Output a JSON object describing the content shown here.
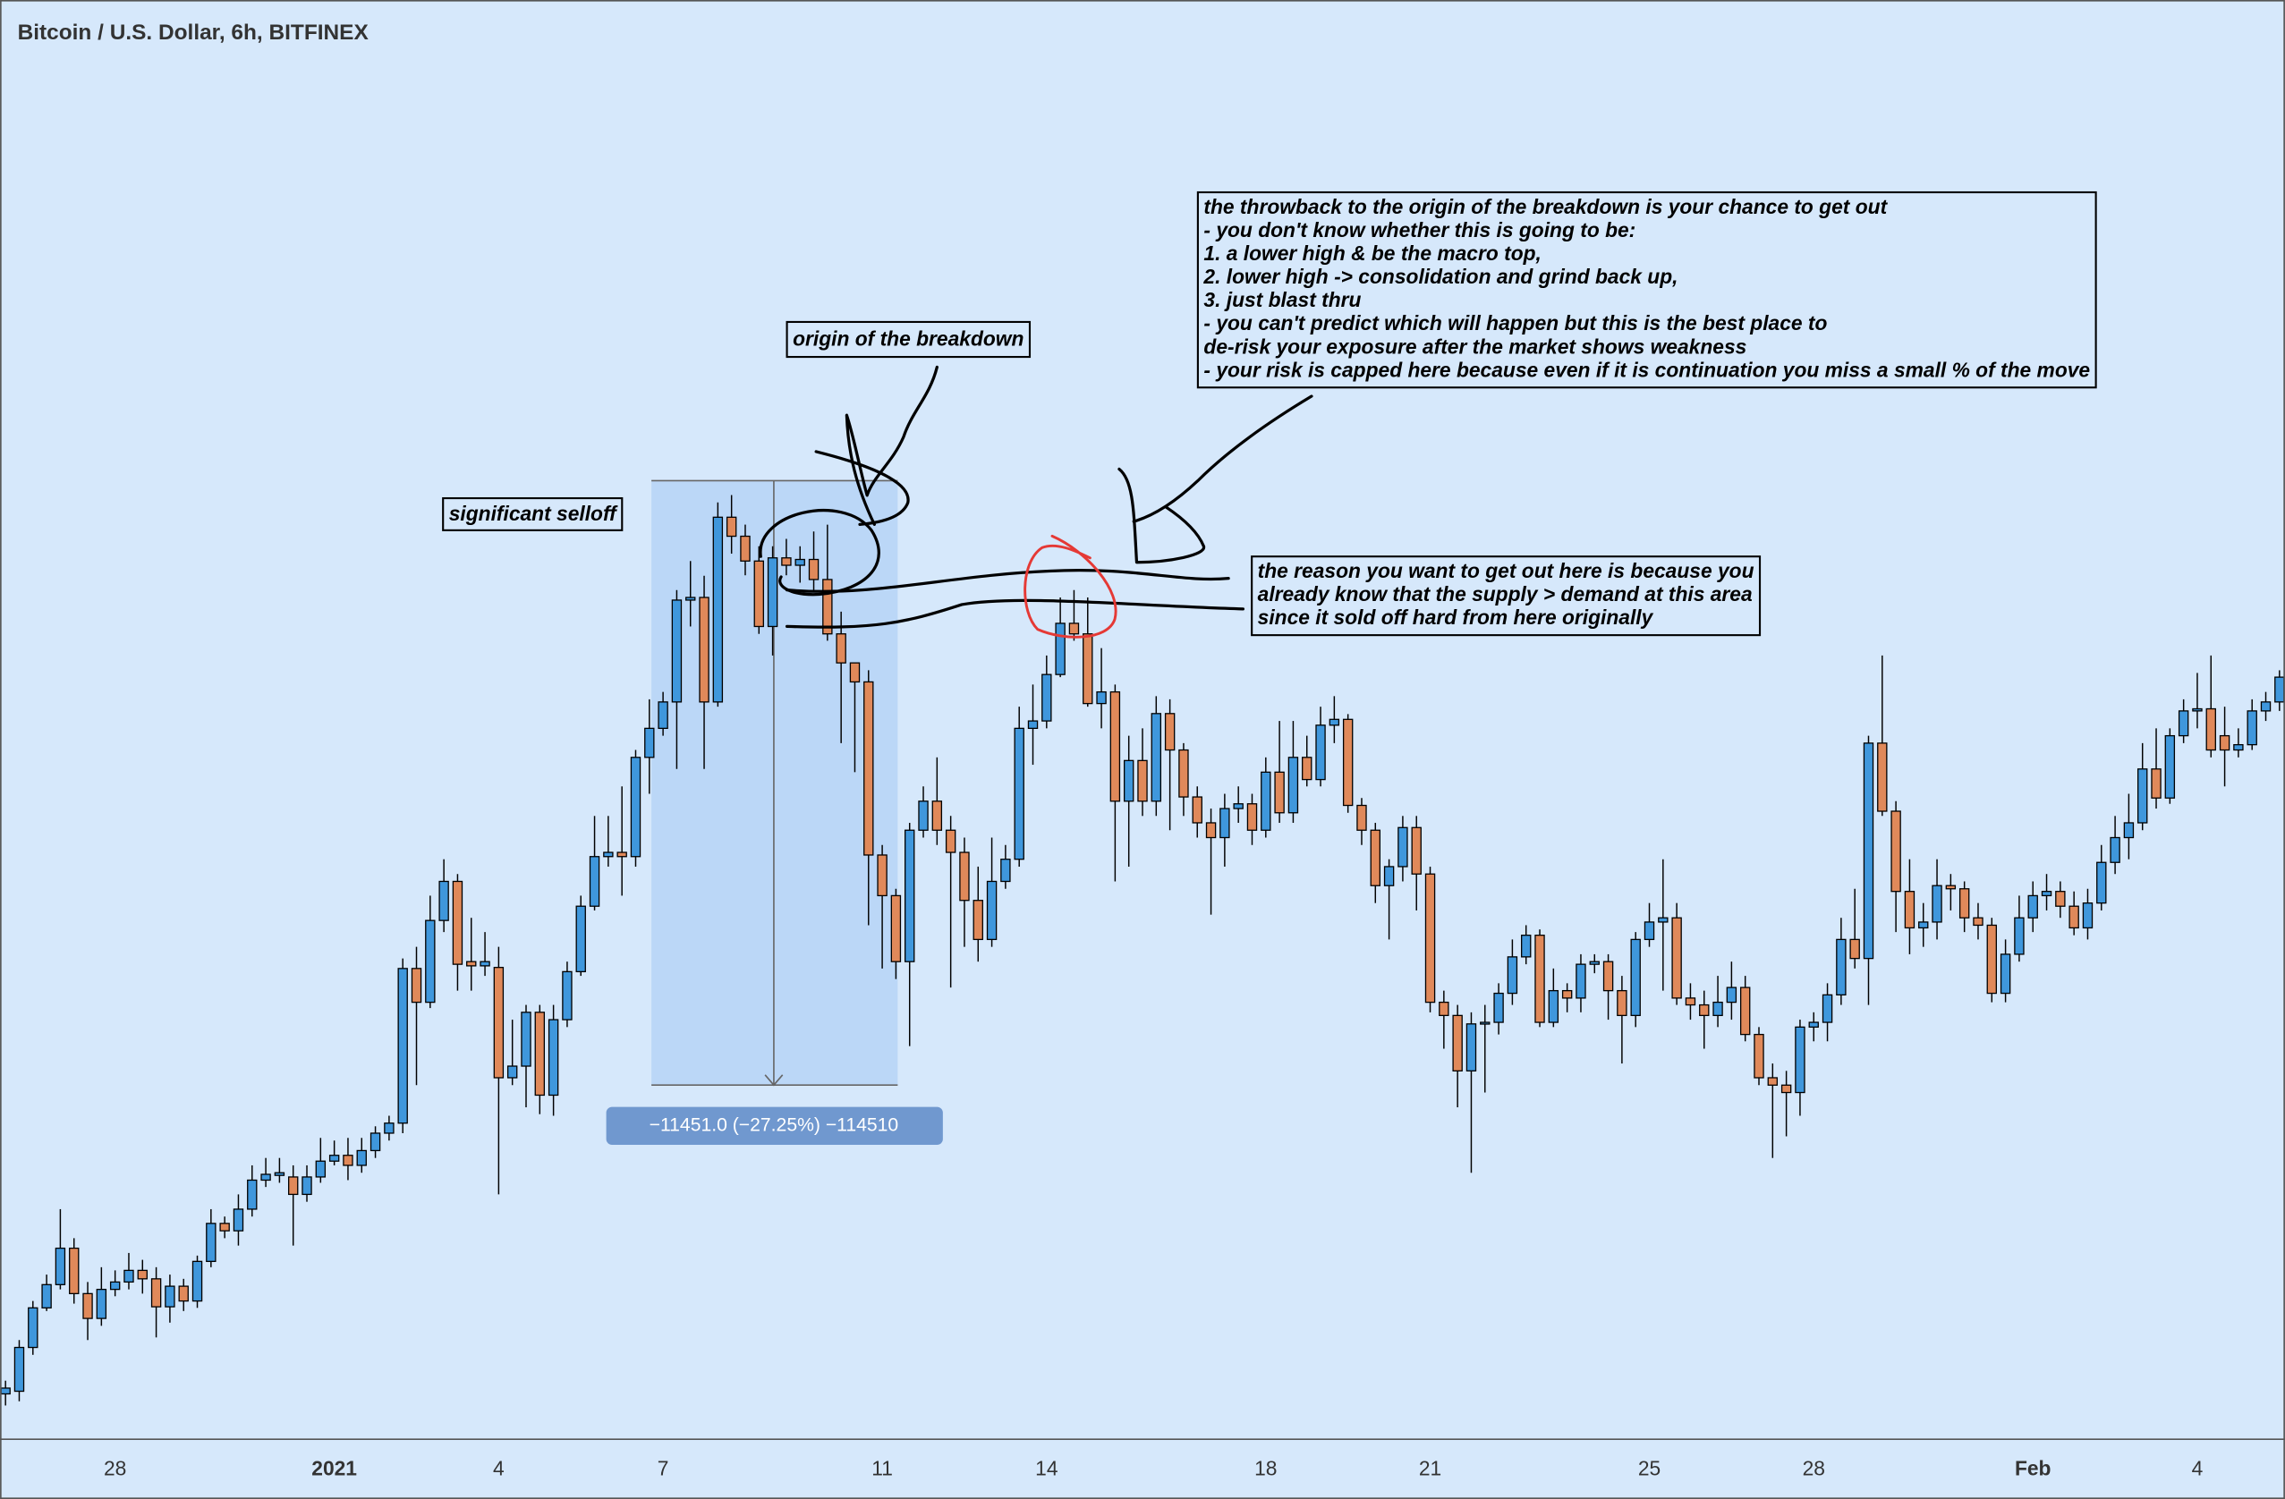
{
  "chart_data": {
    "type": "candlestick",
    "title": "Bitcoin / U.S. Dollar, 6h, BITFINEX",
    "up_color": "#3f97dc",
    "down_color": "#e0895a",
    "background": "#d6e8fb",
    "ylim": [
      23860,
      51130
    ],
    "xlim": [
      -0.4,
      166.4
    ],
    "xticks": [
      {
        "value": 8,
        "label": "28"
      },
      {
        "value": 24,
        "label": "2021"
      },
      {
        "value": 36,
        "label": "4"
      },
      {
        "value": 48,
        "label": "7"
      },
      {
        "value": 64,
        "label": "11"
      },
      {
        "value": 76,
        "label": "14"
      },
      {
        "value": 92,
        "label": "18"
      },
      {
        "value": 104,
        "label": "21"
      },
      {
        "value": 120,
        "label": "25"
      },
      {
        "value": 132,
        "label": "28"
      },
      {
        "value": 148,
        "label": "Feb"
      },
      {
        "value": 160,
        "label": "4"
      }
    ],
    "candles": [
      [
        24720,
        24970,
        24500,
        24830
      ],
      [
        24770,
        25740,
        24580,
        25600
      ],
      [
        25600,
        26480,
        25460,
        26350
      ],
      [
        26350,
        26980,
        26290,
        26790
      ],
      [
        26790,
        28220,
        26700,
        27480
      ],
      [
        27480,
        27670,
        26430,
        26620
      ],
      [
        26620,
        26840,
        25740,
        26150
      ],
      [
        26150,
        27120,
        26010,
        26700
      ],
      [
        26700,
        27060,
        26570,
        26840
      ],
      [
        26840,
        27390,
        26700,
        27060
      ],
      [
        27060,
        27260,
        26620,
        26900
      ],
      [
        26900,
        27120,
        25790,
        26370
      ],
      [
        26370,
        26980,
        26070,
        26760
      ],
      [
        26760,
        26900,
        26290,
        26480
      ],
      [
        26480,
        27340,
        26350,
        27230
      ],
      [
        27230,
        28220,
        27120,
        27950
      ],
      [
        27950,
        28080,
        27670,
        27810
      ],
      [
        27810,
        28500,
        27530,
        28220
      ],
      [
        28220,
        29050,
        28080,
        28770
      ],
      [
        28770,
        29190,
        28640,
        28880
      ],
      [
        28860,
        29190,
        28720,
        28910
      ],
      [
        28830,
        29050,
        27530,
        28500
      ],
      [
        28500,
        29050,
        28360,
        28830
      ],
      [
        28830,
        29570,
        28720,
        29130
      ],
      [
        29130,
        29520,
        29050,
        29240
      ],
      [
        29240,
        29570,
        28770,
        29050
      ],
      [
        29050,
        29570,
        28910,
        29330
      ],
      [
        29330,
        29790,
        29190,
        29660
      ],
      [
        29660,
        29990,
        29520,
        29850
      ],
      [
        29850,
        32970,
        29660,
        32780
      ],
      [
        32780,
        33190,
        30570,
        32140
      ],
      [
        32140,
        34160,
        32030,
        33690
      ],
      [
        33690,
        34850,
        33470,
        34430
      ],
      [
        34430,
        34570,
        32360,
        32860
      ],
      [
        32910,
        33740,
        32360,
        32830
      ],
      [
        32830,
        33470,
        32640,
        32910
      ],
      [
        32800,
        33190,
        28500,
        30710
      ],
      [
        30710,
        31810,
        30570,
        30930
      ],
      [
        30930,
        32090,
        30150,
        31950
      ],
      [
        31950,
        32090,
        30020,
        30380
      ],
      [
        30380,
        32090,
        29990,
        31810
      ],
      [
        31810,
        32910,
        31670,
        32720
      ],
      [
        32720,
        34160,
        32640,
        33960
      ],
      [
        33960,
        35670,
        33880,
        34900
      ],
      [
        34900,
        35670,
        34710,
        34980
      ],
      [
        34980,
        36230,
        34160,
        34900
      ],
      [
        34900,
        36920,
        34710,
        36780
      ],
      [
        36780,
        37880,
        36090,
        37330
      ],
      [
        37330,
        38020,
        37190,
        37830
      ],
      [
        37830,
        39950,
        36560,
        39760
      ],
      [
        39760,
        40500,
        39260,
        39810
      ],
      [
        39810,
        40220,
        36560,
        37830
      ],
      [
        37830,
        41610,
        37740,
        41330
      ],
      [
        41330,
        41750,
        40640,
        40970
      ],
      [
        40970,
        41190,
        40230,
        40500
      ],
      [
        40500,
        40780,
        39120,
        39260
      ],
      [
        39260,
        40780,
        38710,
        40560
      ],
      [
        40560,
        40920,
        40230,
        40420
      ],
      [
        40420,
        40780,
        40090,
        40530
      ],
      [
        40530,
        41060,
        39950,
        40150
      ],
      [
        40150,
        41190,
        38990,
        39120
      ],
      [
        39120,
        39540,
        37050,
        38570
      ],
      [
        38570,
        38570,
        36500,
        38210
      ],
      [
        38210,
        38430,
        33600,
        34930
      ],
      [
        34930,
        35120,
        32780,
        34160
      ],
      [
        34160,
        34290,
        32580,
        32910
      ],
      [
        32910,
        35540,
        31310,
        35400
      ],
      [
        35400,
        36230,
        35260,
        35950
      ],
      [
        35950,
        36780,
        35120,
        35400
      ],
      [
        35400,
        35670,
        32420,
        34980
      ],
      [
        34980,
        35260,
        33190,
        34070
      ],
      [
        34070,
        34710,
        32910,
        33330
      ],
      [
        33330,
        35260,
        33190,
        34430
      ],
      [
        34430,
        35120,
        34290,
        34850
      ],
      [
        34850,
        37740,
        34710,
        37330
      ],
      [
        37330,
        38160,
        36640,
        37470
      ],
      [
        37470,
        38710,
        37330,
        38350
      ],
      [
        38350,
        39810,
        38300,
        39320
      ],
      [
        39320,
        39950,
        38990,
        39120
      ],
      [
        39120,
        39810,
        37740,
        37800
      ],
      [
        37800,
        38850,
        37330,
        38020
      ],
      [
        38020,
        38160,
        34430,
        35950
      ],
      [
        35950,
        37190,
        34710,
        36720
      ],
      [
        36720,
        37330,
        35670,
        35950
      ],
      [
        35950,
        37940,
        35670,
        37610
      ],
      [
        37610,
        37880,
        35400,
        36920
      ],
      [
        36920,
        37050,
        35670,
        36030
      ],
      [
        36030,
        36230,
        35260,
        35540
      ],
      [
        35540,
        35810,
        33800,
        35260
      ],
      [
        35260,
        36090,
        34710,
        35810
      ],
      [
        35810,
        36230,
        35540,
        35900
      ],
      [
        35900,
        36090,
        35120,
        35400
      ],
      [
        35400,
        36780,
        35260,
        36500
      ],
      [
        36500,
        37470,
        35540,
        35730
      ],
      [
        35730,
        37470,
        35540,
        36780
      ],
      [
        36780,
        37190,
        36230,
        36360
      ],
      [
        36360,
        37740,
        36230,
        37390
      ],
      [
        37390,
        37940,
        37050,
        37500
      ],
      [
        37500,
        37600,
        35730,
        35870
      ],
      [
        35870,
        36010,
        35120,
        35400
      ],
      [
        35400,
        35540,
        34020,
        34350
      ],
      [
        34350,
        34850,
        33330,
        34710
      ],
      [
        34710,
        35670,
        34430,
        35450
      ],
      [
        35450,
        35670,
        33880,
        34570
      ],
      [
        34570,
        34710,
        31950,
        32140
      ],
      [
        32140,
        32360,
        31260,
        31890
      ],
      [
        31890,
        32090,
        30150,
        30840
      ],
      [
        30840,
        31950,
        28910,
        31730
      ],
      [
        31730,
        32090,
        30430,
        31760
      ],
      [
        31760,
        32500,
        31530,
        32310
      ],
      [
        32310,
        33330,
        32090,
        33000
      ],
      [
        33000,
        33600,
        32860,
        33410
      ],
      [
        33410,
        33520,
        31670,
        31760
      ],
      [
        31760,
        32780,
        31670,
        32360
      ],
      [
        32360,
        32500,
        31950,
        32220
      ],
      [
        32220,
        33050,
        31950,
        32860
      ],
      [
        32860,
        33050,
        32690,
        32910
      ],
      [
        32910,
        33050,
        31810,
        32360
      ],
      [
        32360,
        32640,
        30980,
        31890
      ],
      [
        31890,
        33470,
        31670,
        33330
      ],
      [
        33330,
        34020,
        33190,
        33660
      ],
      [
        33660,
        34850,
        32360,
        33740
      ],
      [
        33740,
        34020,
        32090,
        32220
      ],
      [
        32220,
        32500,
        31810,
        32090
      ],
      [
        32090,
        32360,
        31260,
        31890
      ],
      [
        31890,
        32640,
        31670,
        32140
      ],
      [
        32140,
        32910,
        31810,
        32420
      ],
      [
        32420,
        32640,
        31400,
        31530
      ],
      [
        31530,
        31670,
        30570,
        30710
      ],
      [
        30710,
        30980,
        29190,
        30570
      ],
      [
        30570,
        30840,
        29600,
        30430
      ],
      [
        30430,
        31810,
        29990,
        31670
      ],
      [
        31670,
        31950,
        31400,
        31760
      ],
      [
        31760,
        32500,
        31400,
        32280
      ],
      [
        32280,
        33740,
        32090,
        33330
      ],
      [
        33330,
        34290,
        32780,
        32970
      ],
      [
        32970,
        37190,
        32090,
        37050
      ],
      [
        37050,
        38710,
        35670,
        35760
      ],
      [
        35760,
        35950,
        33470,
        34240
      ],
      [
        34240,
        34850,
        33050,
        33550
      ],
      [
        33550,
        34020,
        33190,
        33660
      ],
      [
        33660,
        34850,
        33330,
        34350
      ],
      [
        34350,
        34570,
        33880,
        34290
      ],
      [
        34290,
        34430,
        33470,
        33740
      ],
      [
        33740,
        34020,
        33330,
        33600
      ],
      [
        33600,
        33740,
        32140,
        32310
      ],
      [
        32310,
        33330,
        32140,
        33050
      ],
      [
        33050,
        34160,
        32910,
        33740
      ],
      [
        33740,
        34430,
        33470,
        34160
      ],
      [
        34160,
        34570,
        33880,
        34240
      ],
      [
        34240,
        34430,
        33740,
        33960
      ],
      [
        33960,
        34240,
        33410,
        33550
      ],
      [
        33550,
        34290,
        33330,
        34020
      ],
      [
        34020,
        35120,
        33880,
        34790
      ],
      [
        34790,
        35670,
        34570,
        35260
      ],
      [
        35260,
        36090,
        34850,
        35540
      ],
      [
        35540,
        37050,
        35400,
        36560
      ],
      [
        36560,
        37330,
        35810,
        36010
      ],
      [
        36010,
        37330,
        35900,
        37190
      ],
      [
        37190,
        37880,
        37050,
        37660
      ],
      [
        37660,
        38380,
        37330,
        37700
      ],
      [
        37700,
        38710,
        36780,
        36920
      ],
      [
        37190,
        37740,
        36230,
        36920
      ],
      [
        36920,
        37330,
        36780,
        37020
      ],
      [
        37020,
        37880,
        36920,
        37660
      ],
      [
        37660,
        38020,
        37470,
        37830
      ],
      [
        37830,
        38430,
        37660,
        38300
      ]
    ],
    "measure": {
      "from": 42022,
      "to": 30571,
      "label": "−11451.0 (−27.25%) −114510"
    },
    "annotations": [
      {
        "lines": [
          "the throwback to the origin of the breakdown is your chance to get out",
          "- you don't know whether this is going to be:",
          "1. a lower high & be the macro top,",
          "2. lower high -> consolidation and grind back up,",
          "3. just blast thru",
          "- you can't predict which will happen but this is the best place to",
          "de-risk your exposure after the market shows weakness",
          "- your risk is capped here because even if it is continuation you miss a small % of the move"
        ]
      },
      {
        "lines": [
          "origin of the breakdown"
        ]
      },
      {
        "lines": [
          "significant selloff"
        ]
      },
      {
        "lines": [
          "the reason you want to get out here is because you",
          "already know that the supply > demand at this area",
          "since it sold off hard from here originally"
        ]
      }
    ]
  }
}
